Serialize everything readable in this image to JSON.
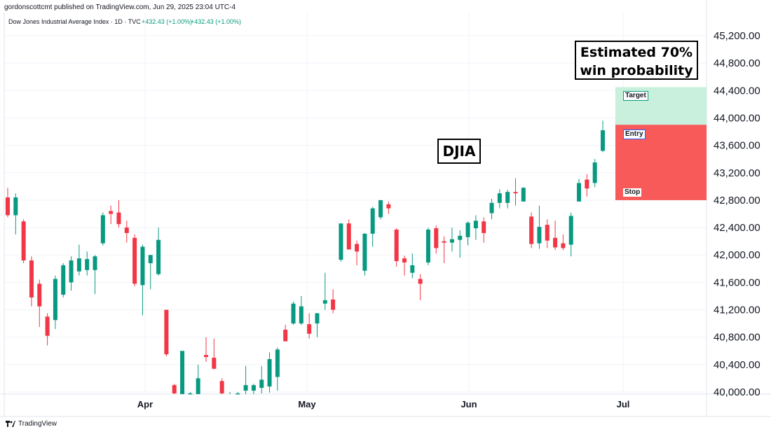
{
  "header": {
    "published": "gordonscottcmt published on TradingView.com, Jun 29, 2025 23:04 UTC-4"
  },
  "legend": {
    "symbol": "Dow Jones Industrial Average Index · 1D · TVC",
    "change1": "+432.43 (+1.00%)",
    "change2": "+432.43 (+1.00%)"
  },
  "footer": {
    "brand": "TradingView"
  },
  "annotations": {
    "djia": "DJIA",
    "estimate_line1": "Estimated 70%",
    "estimate_line2": "win probability",
    "target": "Target",
    "entry": "Entry",
    "stop": "Stop"
  },
  "colors": {
    "up": "#089981",
    "down": "#f23645",
    "profit_zone": "#c8f0dc",
    "loss_zone": "#f85a5a",
    "grid": "#f0f3fa"
  },
  "chart_data": {
    "type": "candlestick",
    "title": "",
    "ylim": [
      40000,
      45400
    ],
    "y_ticks": [
      40000,
      40400,
      40800,
      41200,
      41600,
      42000,
      42400,
      42800,
      43200,
      43600,
      44000,
      44400,
      44800,
      45200
    ],
    "y_tick_labels": [
      "40,000.00",
      "40,400.00",
      "40,800.00",
      "41,200.00",
      "41,600.00",
      "42,000.00",
      "42,400.00",
      "42,800.00",
      "43,200.00",
      "43,600.00",
      "44,000.00",
      "44,400.00",
      "44,800.00",
      "45,200.00"
    ],
    "x_labels": [
      "Apr",
      "May",
      "Jun",
      "Jul"
    ],
    "position": {
      "target": 44450,
      "entry": 43900,
      "stop": 42800
    },
    "candles": [
      {
        "o": 42840,
        "h": 42980,
        "l": 42550,
        "c": 42580
      },
      {
        "o": 42580,
        "h": 42900,
        "l": 42300,
        "c": 42840
      },
      {
        "o": 42490,
        "h": 42520,
        "l": 41880,
        "c": 41920
      },
      {
        "o": 41920,
        "h": 41980,
        "l": 41250,
        "c": 41380
      },
      {
        "o": 41580,
        "h": 41640,
        "l": 40950,
        "c": 41250
      },
      {
        "o": 41100,
        "h": 41150,
        "l": 40680,
        "c": 40820
      },
      {
        "o": 41050,
        "h": 41700,
        "l": 40920,
        "c": 41650
      },
      {
        "o": 41420,
        "h": 41880,
        "l": 41380,
        "c": 41850
      },
      {
        "o": 41600,
        "h": 41980,
        "l": 41480,
        "c": 41920
      },
      {
        "o": 41760,
        "h": 42150,
        "l": 41700,
        "c": 41950
      },
      {
        "o": 41780,
        "h": 42050,
        "l": 41700,
        "c": 41940
      },
      {
        "o": 41780,
        "h": 42000,
        "l": 41430,
        "c": 41980
      },
      {
        "o": 42170,
        "h": 42620,
        "l": 42140,
        "c": 42580
      },
      {
        "o": 42640,
        "h": 42720,
        "l": 42450,
        "c": 42600
      },
      {
        "o": 42620,
        "h": 42800,
        "l": 42400,
        "c": 42450
      },
      {
        "o": 42400,
        "h": 42500,
        "l": 42180,
        "c": 42320
      },
      {
        "o": 42250,
        "h": 42300,
        "l": 41540,
        "c": 41580
      },
      {
        "o": 41560,
        "h": 42150,
        "l": 41120,
        "c": 42120
      },
      {
        "o": 41880,
        "h": 41950,
        "l": 41500,
        "c": 42000
      },
      {
        "o": 41720,
        "h": 42400,
        "l": 41700,
        "c": 42220
      },
      {
        "o": 41200,
        "h": 41180,
        "l": 40520,
        "c": 40550
      },
      {
        "o": 40100,
        "h": 40120,
        "l": 39800,
        "c": 39980
      },
      {
        "o": 39900,
        "h": 40580,
        "l": 39850,
        "c": 40600
      },
      {
        "o": 39960,
        "h": 40000,
        "l": 39700,
        "c": 39980
      },
      {
        "o": 39920,
        "h": 40400,
        "l": 39880,
        "c": 40200
      },
      {
        "o": 40540,
        "h": 40800,
        "l": 40440,
        "c": 40510
      },
      {
        "o": 40500,
        "h": 40780,
        "l": 40330,
        "c": 40340
      },
      {
        "o": 40160,
        "h": 40200,
        "l": 39900,
        "c": 39980
      },
      {
        "o": 39900,
        "h": 40000,
        "l": 39800,
        "c": 39950
      },
      {
        "o": 39950,
        "h": 40000,
        "l": 39700,
        "c": 39980
      },
      {
        "o": 40020,
        "h": 40380,
        "l": 39960,
        "c": 40100
      },
      {
        "o": 40020,
        "h": 40120,
        "l": 39900,
        "c": 40100
      },
      {
        "o": 40060,
        "h": 40380,
        "l": 39980,
        "c": 40180
      },
      {
        "o": 40080,
        "h": 40580,
        "l": 39990,
        "c": 40480
      },
      {
        "o": 40220,
        "h": 40650,
        "l": 40020,
        "c": 40620
      },
      {
        "o": 40910,
        "h": 40980,
        "l": 40740,
        "c": 40740
      },
      {
        "o": 41000,
        "h": 41320,
        "l": 40980,
        "c": 41290
      },
      {
        "o": 41000,
        "h": 41400,
        "l": 40980,
        "c": 41250
      },
      {
        "o": 40990,
        "h": 41150,
        "l": 40780,
        "c": 40850
      },
      {
        "o": 41000,
        "h": 41120,
        "l": 40800,
        "c": 41150
      },
      {
        "o": 41290,
        "h": 41740,
        "l": 41200,
        "c": 41340
      },
      {
        "o": 41350,
        "h": 41500,
        "l": 41150,
        "c": 41200
      },
      {
        "o": 41930,
        "h": 42440,
        "l": 41900,
        "c": 42460
      },
      {
        "o": 42460,
        "h": 42520,
        "l": 42090,
        "c": 42080
      },
      {
        "o": 42160,
        "h": 42210,
        "l": 41850,
        "c": 42050
      },
      {
        "o": 41770,
        "h": 42320,
        "l": 41700,
        "c": 42310
      },
      {
        "o": 42310,
        "h": 42700,
        "l": 42120,
        "c": 42680
      },
      {
        "o": 42550,
        "h": 42800,
        "l": 42520,
        "c": 42800
      },
      {
        "o": 42740,
        "h": 42780,
        "l": 42600,
        "c": 42680
      },
      {
        "o": 42370,
        "h": 42390,
        "l": 41830,
        "c": 41910
      },
      {
        "o": 41950,
        "h": 41990,
        "l": 41700,
        "c": 41890
      },
      {
        "o": 41740,
        "h": 42020,
        "l": 41660,
        "c": 41850
      },
      {
        "o": 41650,
        "h": 41720,
        "l": 41340,
        "c": 41580
      },
      {
        "o": 41890,
        "h": 42400,
        "l": 41850,
        "c": 42370
      },
      {
        "o": 42390,
        "h": 42430,
        "l": 42020,
        "c": 42100
      },
      {
        "o": 42200,
        "h": 42270,
        "l": 41880,
        "c": 42180
      },
      {
        "o": 42180,
        "h": 42400,
        "l": 42050,
        "c": 42230
      },
      {
        "o": 42220,
        "h": 42360,
        "l": 41960,
        "c": 42280
      },
      {
        "o": 42260,
        "h": 42490,
        "l": 42140,
        "c": 42470
      },
      {
        "o": 42390,
        "h": 42580,
        "l": 42220,
        "c": 42500
      },
      {
        "o": 42490,
        "h": 42550,
        "l": 42180,
        "c": 42320
      },
      {
        "o": 42610,
        "h": 42820,
        "l": 42520,
        "c": 42760
      },
      {
        "o": 42760,
        "h": 42960,
        "l": 42680,
        "c": 42900
      },
      {
        "o": 42760,
        "h": 42950,
        "l": 42680,
        "c": 42920
      },
      {
        "o": 42920,
        "h": 43120,
        "l": 42720,
        "c": 42900
      },
      {
        "o": 42780,
        "h": 42990,
        "l": 42780,
        "c": 42980
      },
      {
        "o": 42560,
        "h": 42620,
        "l": 42100,
        "c": 42160
      },
      {
        "o": 42170,
        "h": 42720,
        "l": 42090,
        "c": 42410
      },
      {
        "o": 42440,
        "h": 42520,
        "l": 42100,
        "c": 42210
      },
      {
        "o": 42250,
        "h": 42500,
        "l": 42070,
        "c": 42110
      },
      {
        "o": 42170,
        "h": 42300,
        "l": 42070,
        "c": 42100
      },
      {
        "o": 42150,
        "h": 42620,
        "l": 41980,
        "c": 42570
      },
      {
        "o": 42780,
        "h": 43110,
        "l": 42780,
        "c": 43050
      },
      {
        "o": 43100,
        "h": 43180,
        "l": 42850,
        "c": 42970
      },
      {
        "o": 43050,
        "h": 43400,
        "l": 42990,
        "c": 43350
      },
      {
        "o": 43520,
        "h": 43960,
        "l": 43500,
        "c": 43820
      }
    ]
  }
}
